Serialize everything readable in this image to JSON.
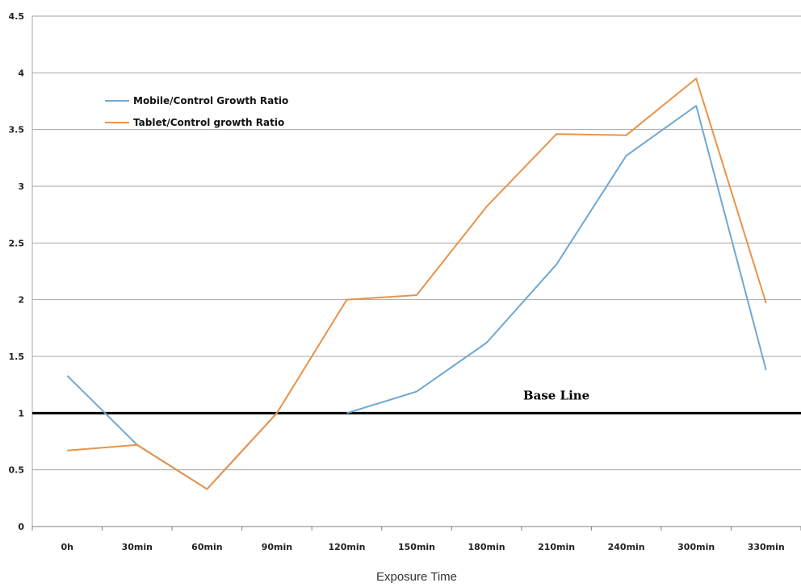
{
  "chart_data": {
    "type": "line",
    "title": "",
    "xlabel": "Exposure Time",
    "ylabel": "",
    "categories": [
      "0h",
      "30min",
      "60min",
      "90min",
      "120min",
      "150min",
      "180min",
      "210min",
      "240min",
      "300min",
      "330min"
    ],
    "ylim": [
      0,
      4.5
    ],
    "yticks": [
      "0",
      "0.5",
      "1",
      "1.5",
      "2",
      "2.5",
      "3",
      "3.5",
      "4",
      "4.5"
    ],
    "grid": true,
    "legend_position": "top-left",
    "series": [
      {
        "name": "Mobile/Control Growth Ratio",
        "color": "#6fa8d0",
        "values": [
          1.33,
          0.72,
          0.33,
          1.0,
          null,
          1.19,
          1.62,
          2.31,
          3.27,
          3.71,
          1.38
        ]
      },
      {
        "name": "Tablet/Control growth Ratio",
        "color": "#e8934a",
        "values": [
          0.67,
          0.72,
          0.33,
          1.0,
          2.0,
          2.04,
          2.82,
          3.46,
          3.45,
          3.95,
          1.97
        ]
      }
    ],
    "baseline": {
      "value": 1,
      "label": "Base Line",
      "color": "#000000"
    },
    "mobile_segment_start": {
      "x_index": 4,
      "value": 1.0
    }
  }
}
